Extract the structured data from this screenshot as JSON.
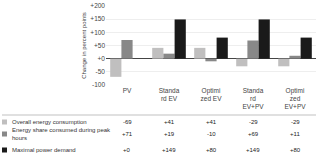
{
  "chart_data": {
    "type": "bar",
    "categories": [
      "PV",
      "Standa\nrd EV",
      "Optimi\nzed EV",
      "Standa\nrd\nEV+PV",
      "Optimi\nzed\nEV+PV"
    ],
    "series": [
      {
        "name": "Overall energy consumption",
        "color": "#c0bfbf",
        "values": [
          -69,
          41,
          41,
          -29,
          -29
        ],
        "value_labels": [
          "-69",
          "+41",
          "+41",
          "-29",
          "-29"
        ]
      },
      {
        "name": "Energy share consumed during peak\nhours",
        "color": "#888888",
        "values": [
          71,
          19,
          -10,
          69,
          11
        ],
        "value_labels": [
          "+71",
          "+19",
          "-10",
          "+69",
          "+11"
        ]
      },
      {
        "name": "Maximal power demand",
        "color": "#1a1a1a",
        "values": [
          0,
          149,
          80,
          149,
          80
        ],
        "value_labels": [
          "+0",
          "+149",
          "+80",
          "+149",
          "+80"
        ]
      }
    ],
    "ylabel": "Change in percent points",
    "ylim": [
      -100,
      200
    ],
    "yticks": [
      -100,
      -50,
      {
        "value": 0,
        "label": "+0"
      },
      {
        "value": 50,
        "label": "+50"
      },
      {
        "value": 100,
        "label": "+100"
      },
      {
        "value": 150,
        "label": "+150"
      },
      {
        "value": 200,
        "label": "+200"
      }
    ],
    "grid": true
  }
}
